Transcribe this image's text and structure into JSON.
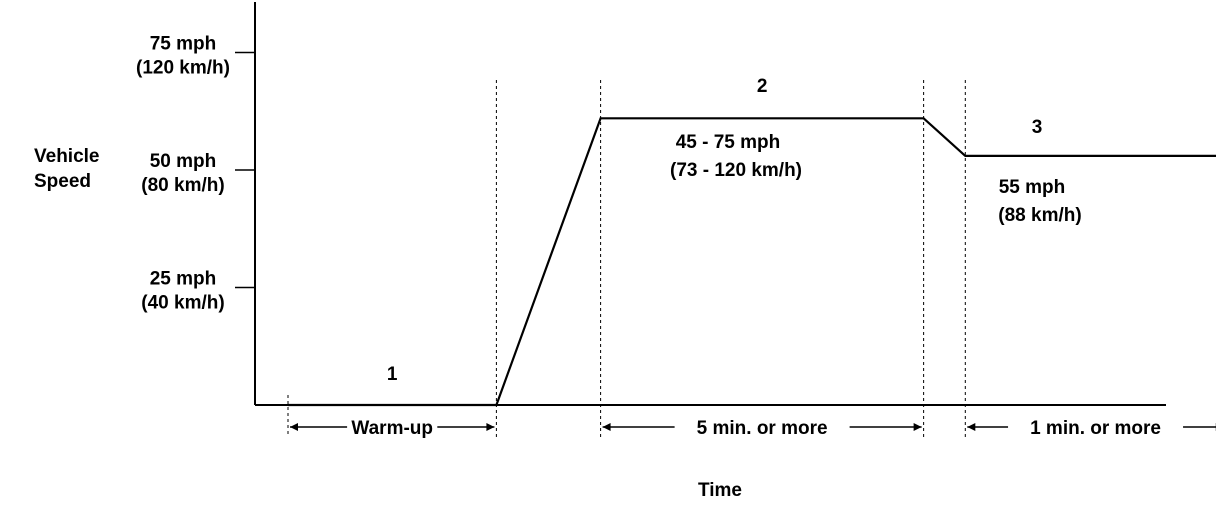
{
  "chart_data": {
    "type": "line",
    "ylabel_lines": [
      "Vehicle",
      "Speed"
    ],
    "xlabel": "Time",
    "y_ticks": [
      {
        "value": 25,
        "lines": [
          "25 mph",
          "(40 km/h)"
        ]
      },
      {
        "value": 50,
        "lines": [
          "50 mph",
          "(80 km/h)"
        ]
      },
      {
        "value": 75,
        "lines": [
          "75 mph",
          "(120 km/h)"
        ]
      }
    ],
    "ylim": [
      0,
      85
    ],
    "series": [
      {
        "points": [
          {
            "t": 0.0,
            "v": 0
          },
          {
            "t": 2.0,
            "v": 0
          },
          {
            "t": 3.0,
            "v": 61
          },
          {
            "t": 6.1,
            "v": 61
          },
          {
            "t": 6.5,
            "v": 53
          },
          {
            "t": 9.0,
            "v": 53
          }
        ]
      }
    ],
    "phases": [
      {
        "number": "1",
        "duration": "Warm-up",
        "speed_lines": []
      },
      {
        "number": "2",
        "duration": "5 min. or  more",
        "speed_lines": [
          "45 - 75 mph",
          "(73 - 120 km/h)"
        ]
      },
      {
        "number": "3",
        "duration": "1 min. or  more",
        "speed_lines": [
          "55 mph",
          "(88 km/h)"
        ]
      }
    ]
  }
}
